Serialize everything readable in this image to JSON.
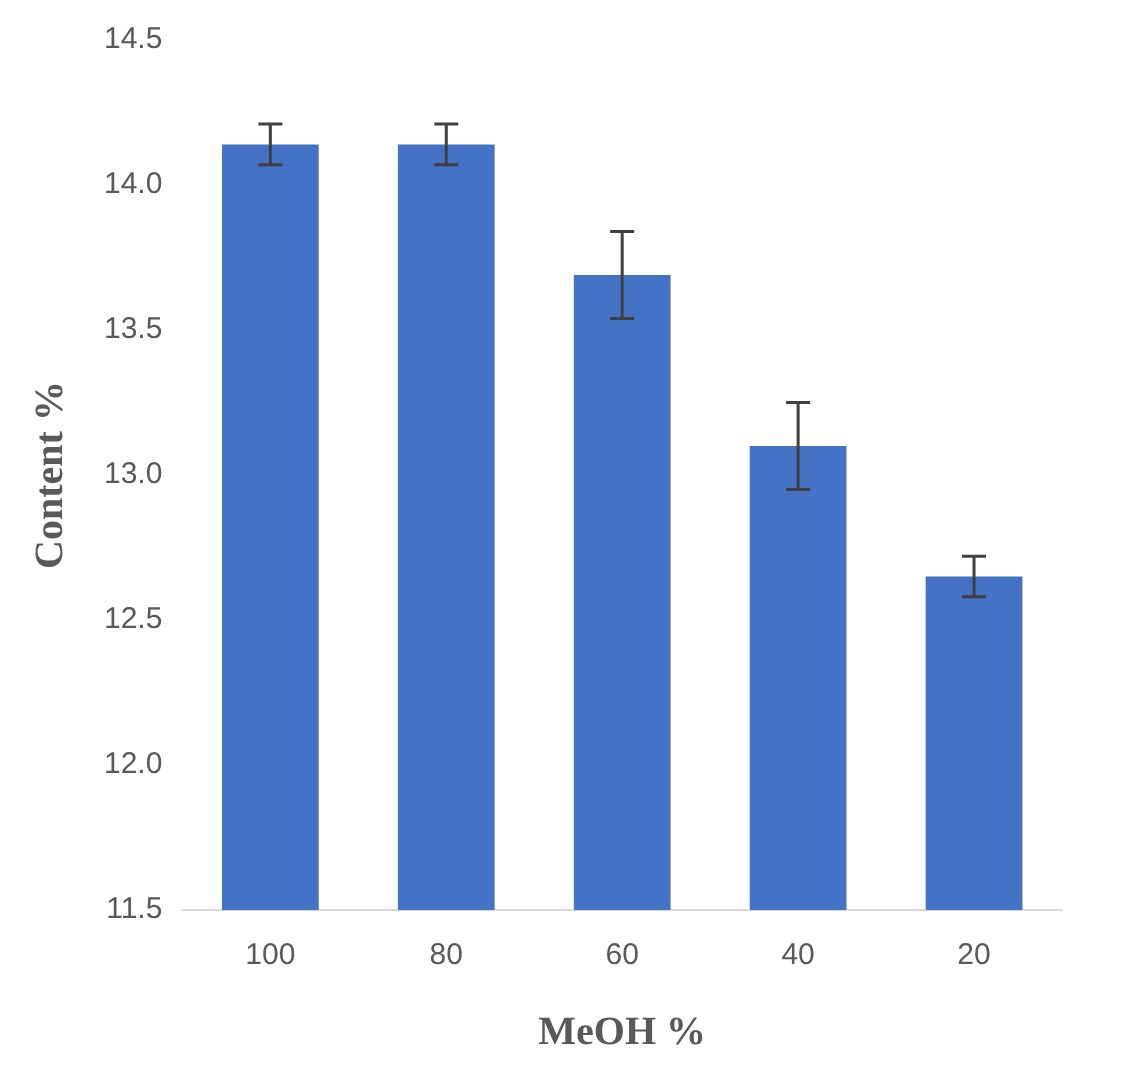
{
  "chart_data": {
    "type": "bar",
    "xlabel": "MeOH %",
    "ylabel": "Content %",
    "categories": [
      "100",
      "80",
      "60",
      "40",
      "20"
    ],
    "values": [
      14.14,
      14.14,
      13.69,
      13.1,
      12.65
    ],
    "errors": [
      0.07,
      0.07,
      0.15,
      0.15,
      0.07
    ],
    "color": "#4472c4",
    "ylim": [
      11.5,
      14.5
    ],
    "yticks": [
      {
        "value": 11.5,
        "label": "11.5"
      },
      {
        "value": 12,
        "label": "12.0"
      },
      {
        "value": 12.5,
        "label": "12.5"
      },
      {
        "value": 13,
        "label": "13.0"
      },
      {
        "value": 13.5,
        "label": "13.5"
      },
      {
        "value": 14,
        "label": "14.0"
      },
      {
        "value": 14.5,
        "label": "14.5"
      }
    ],
    "grid": false,
    "legend": false
  }
}
